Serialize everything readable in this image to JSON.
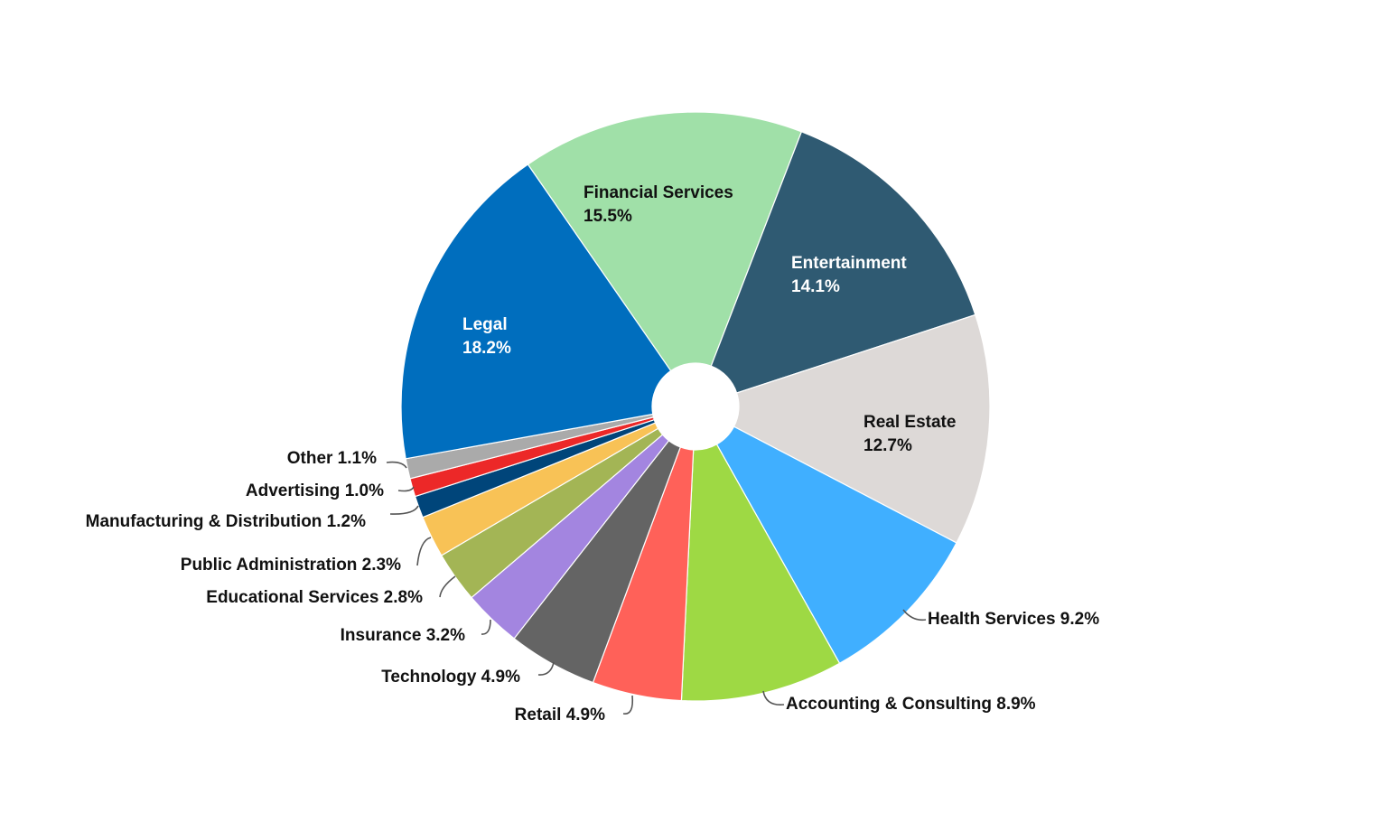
{
  "chart_data": {
    "type": "pie",
    "style": "donut",
    "unit": "%",
    "slices": [
      {
        "label": "Financial Services",
        "value": 15.5,
        "display": "15.5%",
        "color": "#A0E0A8"
      },
      {
        "label": "Entertainment",
        "value": 14.1,
        "display": "14.1%",
        "color": "#2F5A72"
      },
      {
        "label": "Real Estate",
        "value": 12.7,
        "display": "12.7%",
        "color": "#DDD9D7"
      },
      {
        "label": "Health Services",
        "value": 9.2,
        "display": "9.2%",
        "color": "#40AFFF"
      },
      {
        "label": "Accounting & Consulting",
        "value": 8.9,
        "display": "8.9%",
        "color": "#9ED944"
      },
      {
        "label": "Retail",
        "value": 4.9,
        "display": "4.9%",
        "color": "#FF6159"
      },
      {
        "label": "Technology",
        "value": 4.9,
        "display": "4.9%",
        "color": "#646464"
      },
      {
        "label": "Insurance",
        "value": 3.2,
        "display": "3.2%",
        "color": "#A385E0"
      },
      {
        "label": "Educational Services",
        "value": 2.8,
        "display": "2.8%",
        "color": "#A3B555"
      },
      {
        "label": "Public Administration",
        "value": 2.3,
        "display": "2.3%",
        "color": "#F8C256"
      },
      {
        "label": "Manufacturing & Distribution",
        "value": 1.2,
        "display": "1.2%",
        "color": "#00457A"
      },
      {
        "label": "Advertising",
        "value": 1.0,
        "display": "1.0%",
        "color": "#EC2828"
      },
      {
        "label": "Other",
        "value": 1.1,
        "display": "1.1%",
        "color": "#AAAAAA"
      },
      {
        "label": "Legal",
        "value": 18.2,
        "display": "18.2%",
        "color": "#006EBE"
      }
    ],
    "legend": "none (labels on slices)"
  }
}
